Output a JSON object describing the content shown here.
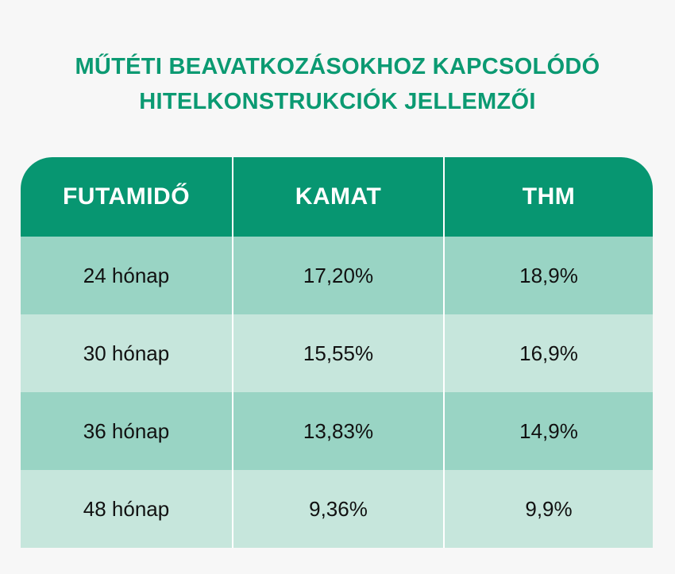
{
  "title": {
    "line1": "MŰTÉTI BEAVATKOZÁSOKHOZ KAPCSOLÓDÓ",
    "line2": "HITELKONSTRUKCIÓK JELLEMZŐI"
  },
  "table": {
    "headers": [
      "FUTAMIDŐ",
      "KAMAT",
      "THM"
    ],
    "rows": [
      [
        "24 hónap",
        "17,20%",
        "18,9%"
      ],
      [
        "30 hónap",
        "15,55%",
        "16,9%"
      ],
      [
        "36 hónap",
        "13,83%",
        "14,9%"
      ],
      [
        "48 hónap",
        "9,36%",
        "9,9%"
      ]
    ]
  },
  "colors": {
    "accent": "#0b9a72",
    "header_bg": "#079671",
    "row_dark": "#99d4c4",
    "row_light": "#c6e6dc",
    "background": "#f7f7f7"
  }
}
